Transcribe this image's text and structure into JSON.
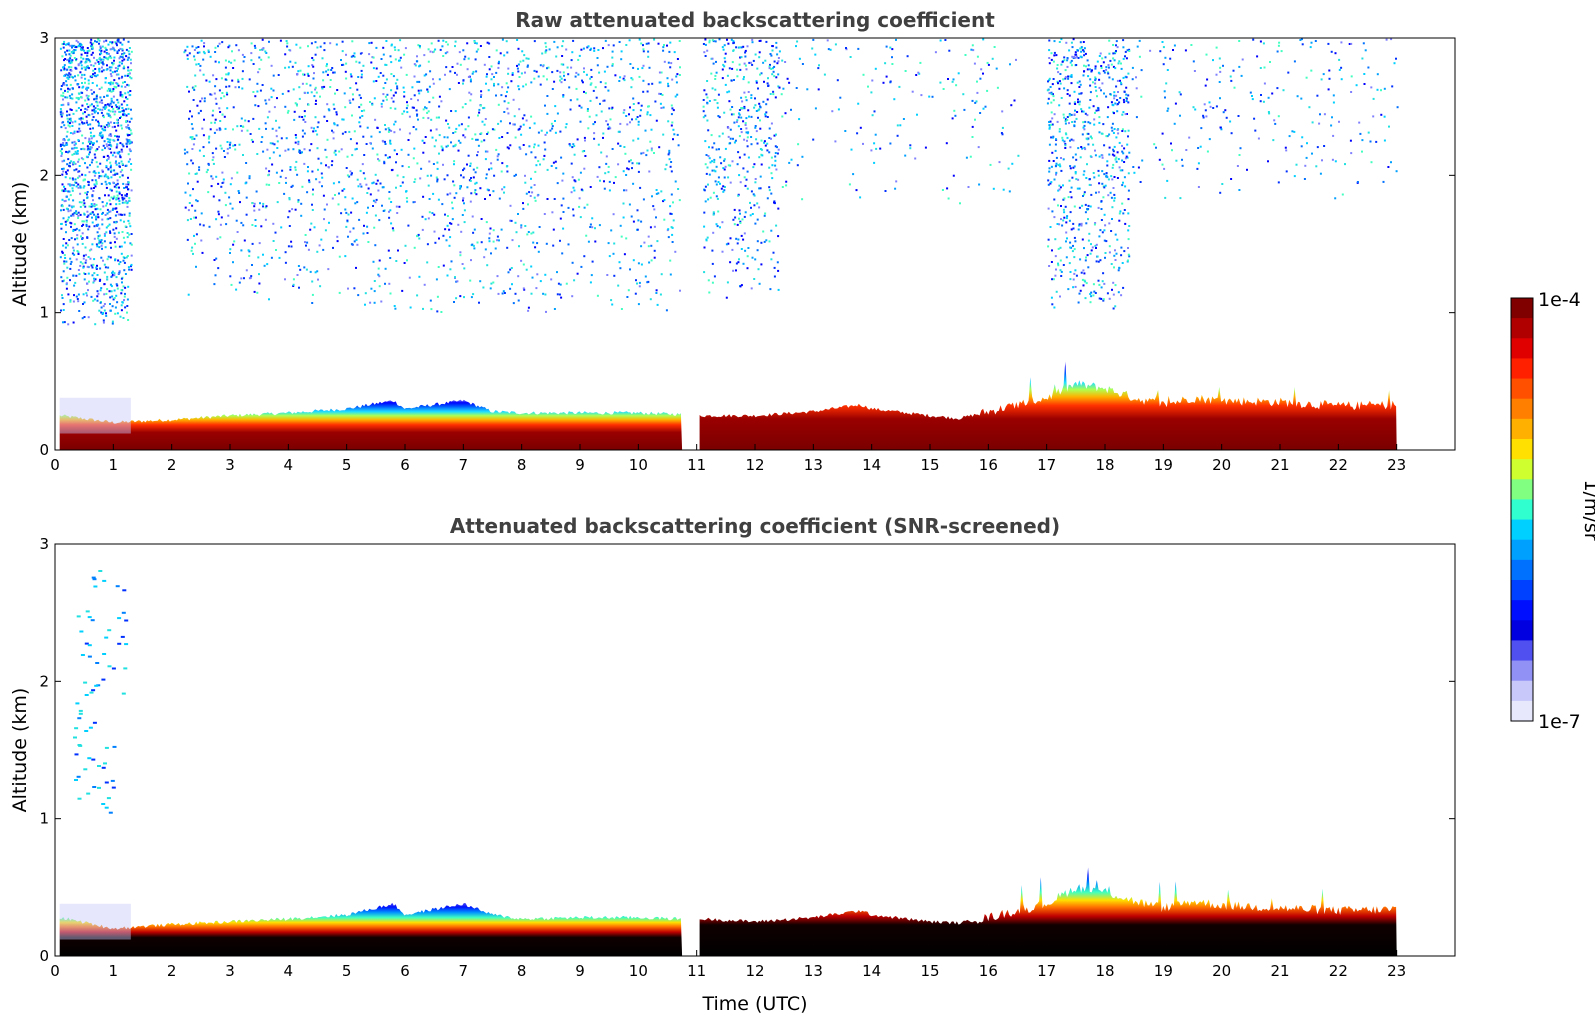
{
  "chart_data": [
    {
      "type": "heatmap",
      "title": "Raw attenuated backscattering coefficient",
      "xlabel": "",
      "ylabel": "Altitude (km)",
      "xlim": [
        0,
        24
      ],
      "ylim": [
        0,
        3
      ],
      "xticks": [
        "0",
        "1",
        "2",
        "3",
        "4",
        "5",
        "6",
        "7",
        "8",
        "9",
        "10",
        "11",
        "12",
        "13",
        "14",
        "15",
        "16",
        "17",
        "18",
        "19",
        "20",
        "21",
        "22",
        "23"
      ],
      "yticks": [
        "0",
        "1",
        "2",
        "3"
      ],
      "data_gap_utc": [
        10.75,
        11.05
      ],
      "data_end_utc": 23.0,
      "boundary_layer_top_km": [
        [
          0.1,
          0.25
        ],
        [
          1,
          0.2
        ],
        [
          2,
          0.22
        ],
        [
          3,
          0.25
        ],
        [
          4,
          0.27
        ],
        [
          5,
          0.3
        ],
        [
          5.8,
          0.36
        ],
        [
          6,
          0.3
        ],
        [
          7,
          0.36
        ],
        [
          7.5,
          0.28
        ],
        [
          8,
          0.27
        ],
        [
          9,
          0.27
        ],
        [
          10,
          0.27
        ],
        [
          10.7,
          0.26
        ],
        [
          11.1,
          0.25
        ],
        [
          12,
          0.25
        ],
        [
          13,
          0.28
        ],
        [
          13.8,
          0.33
        ],
        [
          14,
          0.3
        ],
        [
          15,
          0.25
        ],
        [
          15.5,
          0.23
        ],
        [
          16,
          0.28
        ],
        [
          17,
          0.38
        ],
        [
          17.5,
          0.48
        ],
        [
          18,
          0.45
        ],
        [
          18.5,
          0.38
        ],
        [
          19,
          0.33
        ],
        [
          19.5,
          0.38
        ],
        [
          20,
          0.36
        ],
        [
          21,
          0.35
        ],
        [
          22,
          0.32
        ],
        [
          23,
          0.33
        ]
      ],
      "upper_noise_region_km": [
        1.0,
        3.0
      ]
    },
    {
      "type": "heatmap",
      "title": "Attenuated backscattering coefficient (SNR-screened)",
      "xlabel": "Time (UTC)",
      "ylabel": "Altitude (km)",
      "xlim": [
        0,
        24
      ],
      "ylim": [
        0,
        3
      ],
      "xticks": [
        "0",
        "1",
        "2",
        "3",
        "4",
        "5",
        "6",
        "7",
        "8",
        "9",
        "10",
        "11",
        "12",
        "13",
        "14",
        "15",
        "16",
        "17",
        "18",
        "19",
        "20",
        "21",
        "22",
        "23"
      ],
      "yticks": [
        "0",
        "1",
        "2",
        "3"
      ],
      "data_gap_utc": [
        10.75,
        11.05
      ],
      "data_end_utc": 23.0,
      "boundary_layer_top_km": [
        [
          0.1,
          0.28
        ],
        [
          1,
          0.2
        ],
        [
          2,
          0.23
        ],
        [
          3,
          0.25
        ],
        [
          4,
          0.27
        ],
        [
          5,
          0.3
        ],
        [
          5.8,
          0.38
        ],
        [
          6,
          0.3
        ],
        [
          7,
          0.38
        ],
        [
          7.5,
          0.3
        ],
        [
          8,
          0.27
        ],
        [
          9,
          0.28
        ],
        [
          10,
          0.28
        ],
        [
          10.7,
          0.27
        ],
        [
          11.1,
          0.27
        ],
        [
          12,
          0.25
        ],
        [
          13,
          0.28
        ],
        [
          13.8,
          0.33
        ],
        [
          14,
          0.3
        ],
        [
          15,
          0.25
        ],
        [
          15.5,
          0.24
        ],
        [
          16,
          0.28
        ],
        [
          17,
          0.38
        ],
        [
          17.5,
          0.5
        ],
        [
          18,
          0.47
        ],
        [
          18.5,
          0.4
        ],
        [
          19,
          0.35
        ],
        [
          19.5,
          0.4
        ],
        [
          20,
          0.37
        ],
        [
          21,
          0.35
        ],
        [
          22,
          0.33
        ],
        [
          23,
          0.34
        ]
      ]
    }
  ],
  "colorbar": {
    "max_label": "1e-4",
    "min_label": "1e-7",
    "unit_label": "1/m/sr",
    "colors": [
      "#800000",
      "#b00000",
      "#e00000",
      "#ff2000",
      "#ff5000",
      "#ff8000",
      "#ffb000",
      "#ffe000",
      "#d0ff30",
      "#80ff80",
      "#30ffd0",
      "#00d0ff",
      "#00a0ff",
      "#0070ff",
      "#0040ff",
      "#0010ff",
      "#0000e0",
      "#5050f0",
      "#9090f5",
      "#c8c8fa",
      "#e8e8fd"
    ]
  }
}
